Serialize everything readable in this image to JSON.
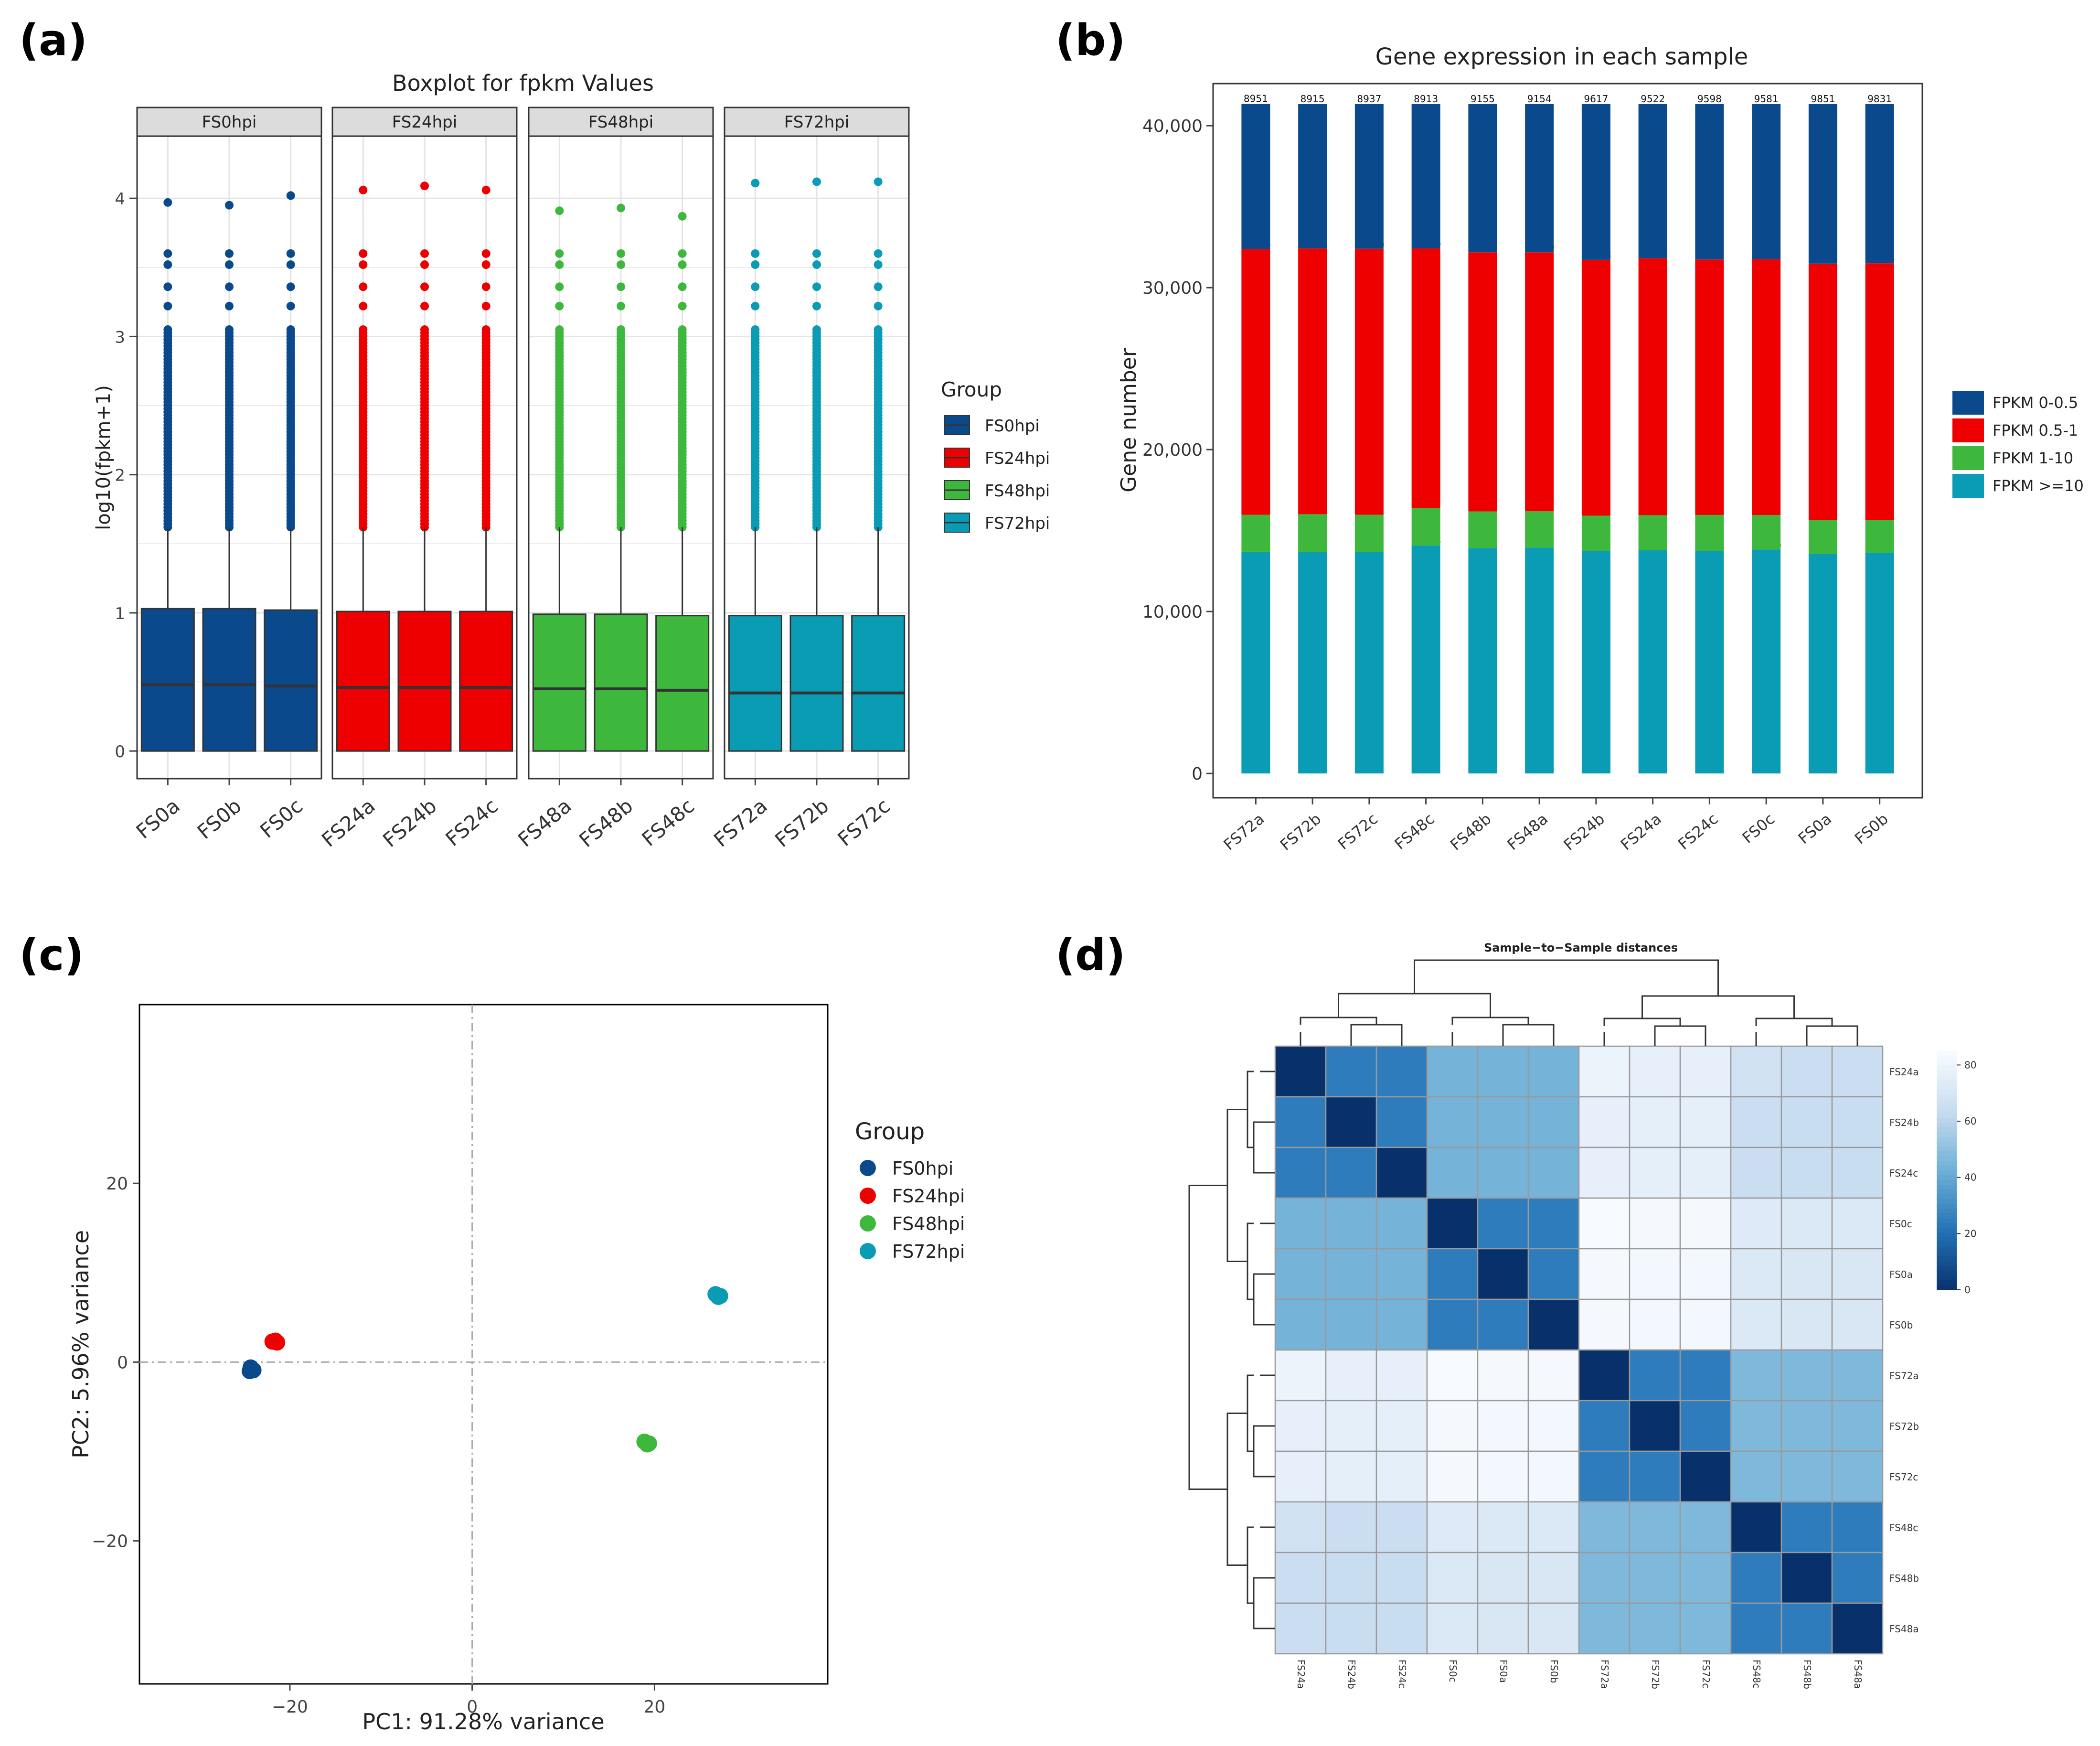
{
  "colors": {
    "fs0": "#0a4a8c",
    "fs24": "#ee0000",
    "fs48": "#3db83d",
    "fs72": "#0a9cb5",
    "panel_border": "#333333",
    "grid": "#e4e4e4",
    "strip_fill": "#dcdcdc",
    "heat_low": "#08306b",
    "heat_high": "#f7fbff"
  },
  "panel_labels": [
    "(a)",
    "(b)",
    "(c)",
    "(d)"
  ],
  "chart_data": [
    {
      "id": "a",
      "type": "box",
      "title": "Boxplot for fpkm Values",
      "ylabel": "log10(fpkm+1)",
      "ylim": [
        -0.2,
        4.45
      ],
      "yticks": [
        0,
        1,
        2,
        3,
        4
      ],
      "legend_title": "Group",
      "facets": [
        {
          "label": "FS0hpi",
          "color_key": "fs0",
          "samples": [
            {
              "name": "FS0a",
              "q1": 0,
              "median": 0.48,
              "q3": 1.03,
              "whisker_high": 1.62,
              "outlier_top": 3.97
            },
            {
              "name": "FS0b",
              "q1": 0,
              "median": 0.48,
              "q3": 1.03,
              "whisker_high": 1.62,
              "outlier_top": 3.95
            },
            {
              "name": "FS0c",
              "q1": 0,
              "median": 0.47,
              "q3": 1.02,
              "whisker_high": 1.62,
              "outlier_top": 4.02
            }
          ]
        },
        {
          "label": "FS24hpi",
          "color_key": "fs24",
          "samples": [
            {
              "name": "FS24a",
              "q1": 0,
              "median": 0.46,
              "q3": 1.01,
              "whisker_high": 1.62,
              "outlier_top": 4.06
            },
            {
              "name": "FS24b",
              "q1": 0,
              "median": 0.46,
              "q3": 1.01,
              "whisker_high": 1.62,
              "outlier_top": 4.09
            },
            {
              "name": "FS24c",
              "q1": 0,
              "median": 0.46,
              "q3": 1.01,
              "whisker_high": 1.62,
              "outlier_top": 4.06
            }
          ]
        },
        {
          "label": "FS48hpi",
          "color_key": "fs48",
          "samples": [
            {
              "name": "FS48a",
              "q1": 0,
              "median": 0.45,
              "q3": 0.99,
              "whisker_high": 1.62,
              "outlier_top": 3.91
            },
            {
              "name": "FS48b",
              "q1": 0,
              "median": 0.45,
              "q3": 0.99,
              "whisker_high": 1.62,
              "outlier_top": 3.93
            },
            {
              "name": "FS48c",
              "q1": 0,
              "median": 0.44,
              "q3": 0.98,
              "whisker_high": 1.62,
              "outlier_top": 3.87
            }
          ]
        },
        {
          "label": "FS72hpi",
          "color_key": "fs72",
          "samples": [
            {
              "name": "FS72a",
              "q1": 0,
              "median": 0.42,
              "q3": 0.98,
              "whisker_high": 1.62,
              "outlier_top": 4.11
            },
            {
              "name": "FS72b",
              "q1": 0,
              "median": 0.42,
              "q3": 0.98,
              "whisker_high": 1.62,
              "outlier_top": 4.12
            },
            {
              "name": "FS72c",
              "q1": 0,
              "median": 0.42,
              "q3": 0.98,
              "whisker_high": 1.62,
              "outlier_top": 4.12
            }
          ]
        }
      ],
      "legend": [
        {
          "label": "FS0hpi",
          "color_key": "fs0"
        },
        {
          "label": "FS24hpi",
          "color_key": "fs24"
        },
        {
          "label": "FS48hpi",
          "color_key": "fs48"
        },
        {
          "label": "FS72hpi",
          "color_key": "fs72"
        }
      ]
    },
    {
      "id": "b",
      "type": "stacked-bar",
      "title": "Gene expression in each sample",
      "ylabel": "Gene number",
      "ylim": [
        -1500,
        42600
      ],
      "yticks": [
        0,
        10000,
        20000,
        30000,
        40000
      ],
      "ytick_labels": [
        "0",
        "10,000",
        "20,000",
        "30,000",
        "40,000"
      ],
      "categories": [
        "FS72a",
        "FS72b",
        "FS72c",
        "FS48c",
        "FS48b",
        "FS48a",
        "FS24b",
        "FS24a",
        "FS24c",
        "FS0c",
        "FS0a",
        "FS0b"
      ],
      "series": [
        {
          "name": "FPKM >=10",
          "color_key": "fs72",
          "values": [
            13693,
            13690,
            13662,
            14078,
            13922,
            13947,
            13722,
            13782,
            13728,
            13826,
            13562,
            13621
          ]
        },
        {
          "name": "FPKM 1-10",
          "color_key": "fs48",
          "values": [
            2278,
            2320,
            2310,
            2328,
            2260,
            2244,
            2198,
            2168,
            2237,
            2131,
            2099,
            2039
          ]
        },
        {
          "name": "FPKM 0.5-1",
          "color_key": "fs24",
          "values": [
            16418,
            16410,
            16426,
            16016,
            15998,
            15990,
            15798,
            15863,
            15772,
            15797,
            15823,
            15844
          ]
        },
        {
          "name": "FPKM 0-0.5",
          "color_key": "fs0",
          "values": [
            8951,
            8915,
            8937,
            8913,
            9155,
            9154,
            9617,
            9522,
            9598,
            9581,
            9851,
            9831
          ]
        }
      ],
      "legend": [
        {
          "label": "FPKM 0-0.5",
          "color_key": "fs0"
        },
        {
          "label": "FPKM 0.5-1",
          "color_key": "fs24"
        },
        {
          "label": "FPKM 1-10",
          "color_key": "fs48"
        },
        {
          "label": "FPKM >=10",
          "color_key": "fs72"
        }
      ]
    },
    {
      "id": "c",
      "type": "scatter",
      "xlabel": "PC1: 91.28% variance",
      "ylabel": "PC2: 5.96% variance",
      "xlim": [
        -36.5,
        39
      ],
      "ylim": [
        -36,
        40
      ],
      "xticks": [
        -20,
        0,
        20
      ],
      "xtick_labels": [
        "−20",
        "0",
        "20"
      ],
      "yticks": [
        -20,
        0,
        20
      ],
      "ytick_labels": [
        "−20",
        "0",
        "20"
      ],
      "legend_title": "Group",
      "series": [
        {
          "name": "FS0hpi",
          "color_key": "fs0",
          "points": [
            [
              -24.3,
              -0.6
            ],
            [
              -24.0,
              -0.9
            ],
            [
              -24.4,
              -1.0
            ]
          ]
        },
        {
          "name": "FS24hpi",
          "color_key": "fs24",
          "points": [
            [
              -21.9,
              2.3
            ],
            [
              -21.6,
              2.4
            ],
            [
              -21.4,
              2.2
            ]
          ]
        },
        {
          "name": "FS48hpi",
          "color_key": "fs48",
          "points": [
            [
              18.9,
              -8.9
            ],
            [
              19.2,
              -9.2
            ],
            [
              19.4,
              -9.1
            ]
          ]
        },
        {
          "name": "FS72hpi",
          "color_key": "fs72",
          "points": [
            [
              26.7,
              7.6
            ],
            [
              27.0,
              7.3
            ],
            [
              27.2,
              7.4
            ]
          ]
        }
      ]
    },
    {
      "id": "d",
      "type": "heatmap",
      "title": "Sample−to−Sample distances",
      "rows": [
        "FS24a",
        "FS24b",
        "FS24c",
        "FS0c",
        "FS0a",
        "FS0b",
        "FS72a",
        "FS72b",
        "FS72c",
        "FS48c",
        "FS48b",
        "FS48a"
      ],
      "cols": [
        "FS24a",
        "FS24b",
        "FS24c",
        "FS0c",
        "FS0a",
        "FS0b",
        "FS72a",
        "FS72b",
        "FS72c",
        "FS48c",
        "FS48b",
        "FS48a"
      ],
      "scale": {
        "min": 0,
        "max": 85,
        "ticks": [
          0,
          20,
          40,
          60,
          80
        ]
      },
      "matrix": [
        [
          0,
          25,
          25,
          45,
          45,
          45,
          80,
          78,
          78,
          68,
          66,
          66
        ],
        [
          25,
          0,
          25,
          45,
          45,
          45,
          78,
          77,
          77,
          66,
          65,
          65
        ],
        [
          25,
          25,
          0,
          45,
          45,
          45,
          78,
          77,
          77,
          66,
          65,
          65
        ],
        [
          45,
          45,
          45,
          0,
          25,
          25,
          85,
          84,
          84,
          74,
          73,
          73
        ],
        [
          45,
          45,
          45,
          25,
          0,
          25,
          84,
          83,
          83,
          73,
          72,
          72
        ],
        [
          45,
          45,
          45,
          25,
          25,
          0,
          84,
          83,
          83,
          73,
          72,
          72
        ],
        [
          80,
          78,
          78,
          85,
          84,
          84,
          0,
          25,
          25,
          47,
          47,
          47
        ],
        [
          78,
          77,
          77,
          84,
          83,
          83,
          25,
          0,
          25,
          47,
          47,
          47
        ],
        [
          78,
          77,
          77,
          84,
          83,
          83,
          25,
          25,
          0,
          47,
          47,
          47
        ],
        [
          68,
          66,
          66,
          74,
          73,
          73,
          47,
          47,
          47,
          0,
          25,
          25
        ],
        [
          66,
          65,
          65,
          73,
          72,
          72,
          47,
          47,
          47,
          25,
          0,
          25
        ],
        [
          66,
          65,
          65,
          73,
          72,
          72,
          47,
          47,
          47,
          25,
          25,
          0
        ]
      ]
    }
  ]
}
